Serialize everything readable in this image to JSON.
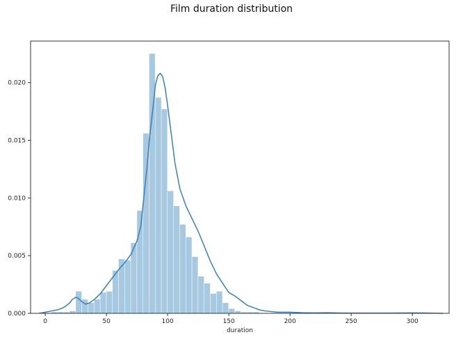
{
  "chart_data": {
    "type": "histogram",
    "title": "Film duration distribution",
    "xlabel": "duration",
    "ylabel": "",
    "xlim": [
      -12,
      330
    ],
    "ylim": [
      0,
      0.0236
    ],
    "xticks": [
      0,
      50,
      100,
      150,
      200,
      250,
      300
    ],
    "yticks": [
      0.0,
      0.005,
      0.01,
      0.015,
      0.02
    ],
    "ytick_labels": [
      "0.000",
      "0.005",
      "0.010",
      "0.015",
      "0.020"
    ],
    "grid": false,
    "legend": false,
    "bin_edges": [
      5,
      10,
      15,
      20,
      25,
      30,
      35,
      40,
      45,
      50,
      55,
      60,
      65,
      70,
      75,
      80,
      85,
      90,
      95,
      100,
      105,
      110,
      115,
      120,
      125,
      130,
      135,
      140,
      145,
      150,
      155,
      160,
      165,
      170,
      175
    ],
    "bar_heights": [
      0.0001,
      0.0001,
      0.0001,
      0.0002,
      0.0019,
      0.0012,
      0.0009,
      0.0012,
      0.0018,
      0.0019,
      0.0037,
      0.0047,
      0.0046,
      0.0061,
      0.0089,
      0.0156,
      0.0225,
      0.0187,
      0.0177,
      0.0106,
      0.0093,
      0.0077,
      0.0066,
      0.0049,
      0.0032,
      0.0026,
      0.0017,
      0.0019,
      0.0009,
      0.0004,
      0.0002,
      0.0001,
      0.0001,
      0.0001
    ],
    "bar_color": "#a6c8e0",
    "kde_color": "#3a7fb5",
    "kde_x": [
      -5,
      0,
      5,
      10,
      15,
      20,
      22,
      25,
      27,
      30,
      33,
      36,
      40,
      45,
      50,
      55,
      60,
      65,
      70,
      75,
      78,
      80,
      83,
      85,
      88,
      90,
      92,
      94,
      96,
      98,
      100,
      103,
      106,
      110,
      115,
      120,
      125,
      130,
      135,
      140,
      145,
      150,
      155,
      160,
      165,
      170,
      175,
      180,
      190,
      200,
      210,
      220,
      230,
      240,
      250,
      260,
      270,
      280,
      290,
      300,
      310,
      320,
      325
    ],
    "kde_y": [
      0.0,
      0.0001,
      0.0002,
      0.0003,
      0.0005,
      0.0009,
      0.0012,
      0.0014,
      0.0013,
      0.001,
      0.0008,
      0.0009,
      0.0012,
      0.0017,
      0.0024,
      0.0031,
      0.0038,
      0.0044,
      0.0051,
      0.0063,
      0.0075,
      0.0095,
      0.0125,
      0.015,
      0.0178,
      0.0198,
      0.0206,
      0.0208,
      0.0205,
      0.0195,
      0.018,
      0.0155,
      0.013,
      0.0108,
      0.0093,
      0.0082,
      0.0071,
      0.0058,
      0.0045,
      0.0034,
      0.0026,
      0.0018,
      0.0015,
      0.0011,
      0.0007,
      0.0005,
      0.0003,
      0.0002,
      0.0001,
      0.0001,
      5e-05,
      4e-05,
      5e-05,
      3e-05,
      2e-05,
      2e-05,
      2e-05,
      2e-05,
      3e-05,
      4e-05,
      3e-05,
      1e-05,
      0.0
    ]
  }
}
